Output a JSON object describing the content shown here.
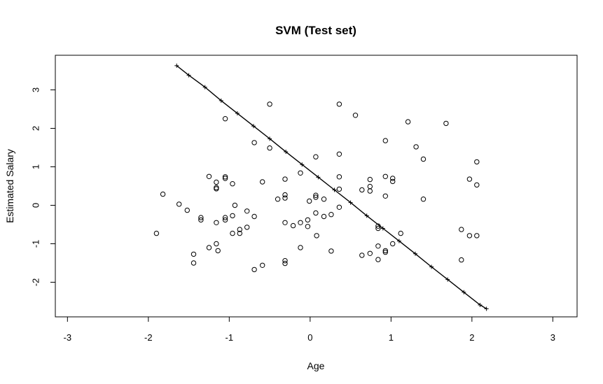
{
  "chart_data": {
    "type": "scatter",
    "title": "SVM (Test set)",
    "xlabel": "Age",
    "ylabel": "Estimated Salary",
    "xlim": [
      -3.15,
      3.3
    ],
    "ylim": [
      -2.9,
      3.9
    ],
    "x_ticks": [
      -3,
      -2,
      -1,
      0,
      1,
      2,
      3
    ],
    "y_ticks": [
      -2,
      -1,
      0,
      1,
      2,
      3
    ],
    "grid": false,
    "legend": "none",
    "colors": {
      "points": "#000000",
      "boundary": "#000000",
      "background": "#ffffff"
    },
    "series": [
      {
        "marker": "open-circle",
        "x": [
          -1.9,
          -1.82,
          -1.62,
          -1.52,
          -1.44,
          -1.44,
          -1.35,
          -1.35,
          -1.25,
          -1.25,
          -1.16,
          -1.16,
          -1.16,
          -1.16,
          -1.16,
          -1.14,
          -1.05,
          -1.05,
          -1.05,
          -1.05,
          -1.05,
          -0.96,
          -0.96,
          -0.96,
          -0.93,
          -0.87,
          -0.87,
          -0.78,
          -0.78,
          -0.69,
          -0.69,
          -0.69,
          -0.59,
          -0.59,
          -0.5,
          -0.5,
          -0.4,
          -0.31,
          -0.31,
          -0.31,
          -0.31,
          -0.31,
          -0.31,
          -0.21,
          -0.12,
          -0.12,
          -0.12,
          -0.03,
          -0.03,
          -0.01,
          0.07,
          0.07,
          0.07,
          0.07,
          0.08,
          0.17,
          0.17,
          0.26,
          0.26,
          0.36,
          0.36,
          0.36,
          0.36,
          0.36,
          0.56,
          0.64,
          0.64,
          0.74,
          0.74,
          0.74,
          0.74,
          0.84,
          0.84,
          0.84,
          0.84,
          0.93,
          0.93,
          0.93,
          0.93,
          0.93,
          1.02,
          1.02,
          1.02,
          1.12,
          1.21,
          1.31,
          1.4,
          1.4,
          1.68,
          1.87,
          1.87,
          1.97,
          1.97,
          2.06,
          2.06,
          2.06
        ],
        "y": [
          -0.73,
          0.29,
          0.03,
          -0.13,
          -1.27,
          -1.5,
          -0.32,
          -0.38,
          0.75,
          -1.1,
          0.6,
          0.46,
          0.43,
          -0.45,
          -1.0,
          -1.18,
          0.74,
          0.7,
          -0.32,
          -0.38,
          2.25,
          0.56,
          -0.27,
          -0.73,
          0.0,
          -0.63,
          -0.73,
          -0.15,
          -0.57,
          1.63,
          -0.29,
          -1.67,
          0.61,
          -1.56,
          1.49,
          2.63,
          0.16,
          0.68,
          0.27,
          0.19,
          -0.45,
          -1.44,
          -1.51,
          -0.53,
          0.84,
          -0.45,
          -1.1,
          -0.38,
          -0.55,
          0.11,
          1.26,
          0.26,
          0.21,
          -0.2,
          -0.79,
          0.16,
          -0.29,
          -0.24,
          -1.19,
          2.63,
          1.33,
          0.74,
          0.42,
          -0.05,
          2.34,
          0.4,
          -1.3,
          0.67,
          0.49,
          0.37,
          -1.25,
          -0.54,
          -0.6,
          -1.06,
          -1.41,
          1.68,
          0.75,
          0.24,
          -1.18,
          -1.22,
          0.7,
          0.62,
          -1.0,
          -0.73,
          2.17,
          1.52,
          1.2,
          0.16,
          2.13,
          -0.63,
          -1.42,
          0.68,
          -0.79,
          1.13,
          0.53,
          -0.79
        ]
      },
      {
        "marker": "line-with-plus",
        "x": [
          -1.65,
          -1.5,
          -1.3,
          -1.1,
          -0.9,
          -0.7,
          -0.5,
          -0.3,
          -0.1,
          0.1,
          0.3,
          0.5,
          0.7,
          0.9,
          1.1,
          1.3,
          1.5,
          1.7,
          1.9,
          2.1,
          2.18
        ],
        "y": [
          3.63,
          3.38,
          3.07,
          2.72,
          2.39,
          2.06,
          1.73,
          1.39,
          1.06,
          0.73,
          0.4,
          0.07,
          -0.27,
          -0.6,
          -0.93,
          -1.26,
          -1.6,
          -1.93,
          -2.26,
          -2.59,
          -2.69
        ]
      }
    ]
  }
}
